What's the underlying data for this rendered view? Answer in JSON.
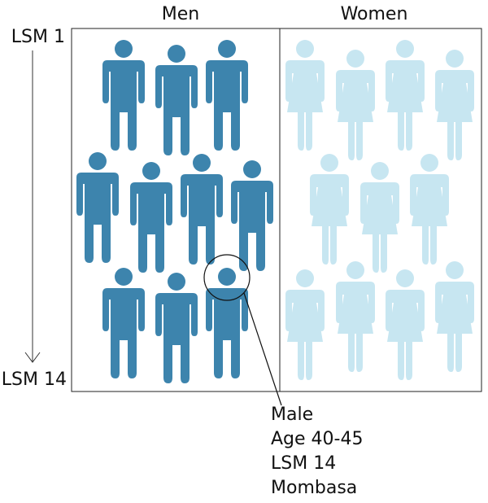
{
  "columns": [
    "Men",
    "Women"
  ],
  "axis": {
    "top": "LSM 1",
    "bottom": "LSM 14"
  },
  "callout": {
    "lines": [
      "Male",
      "Age 40-45",
      "LSM 14",
      "Mombasa"
    ]
  }
}
